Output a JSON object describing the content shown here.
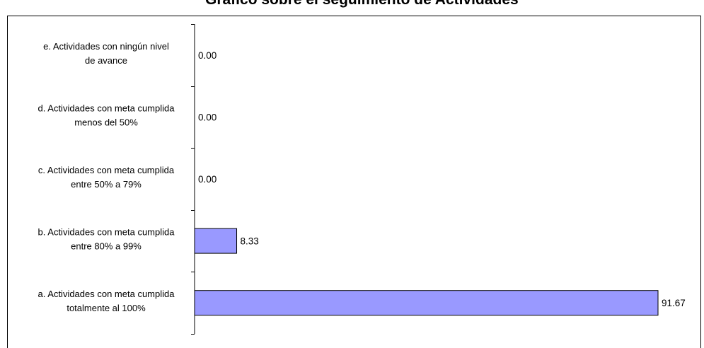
{
  "chart_data": {
    "type": "bar",
    "orientation": "horizontal",
    "title": "Grafico sobre el seguimiento de Actividades",
    "categories": [
      [
        "e. Actividades con ningún nivel",
        "de avance"
      ],
      [
        "d. Actividades con meta cumplida",
        "menos del 50%"
      ],
      [
        "c. Actividades con meta cumplida",
        "entre 50% a 79%"
      ],
      [
        "b. Actividades con meta cumplida",
        "entre 80% a 99%"
      ],
      [
        "a. Actividades con meta cumplida",
        "totalmente al 100%"
      ]
    ],
    "values": [
      0.0,
      0.0,
      0.0,
      8.33,
      91.67
    ],
    "value_labels": [
      "0.00",
      "0.00",
      "0.00",
      "8.33",
      "91.67"
    ],
    "xlim": [
      0,
      91.67
    ],
    "bar_color": "#9999ff",
    "bar_stroke": "#000000",
    "grid": false,
    "legend": "none"
  }
}
